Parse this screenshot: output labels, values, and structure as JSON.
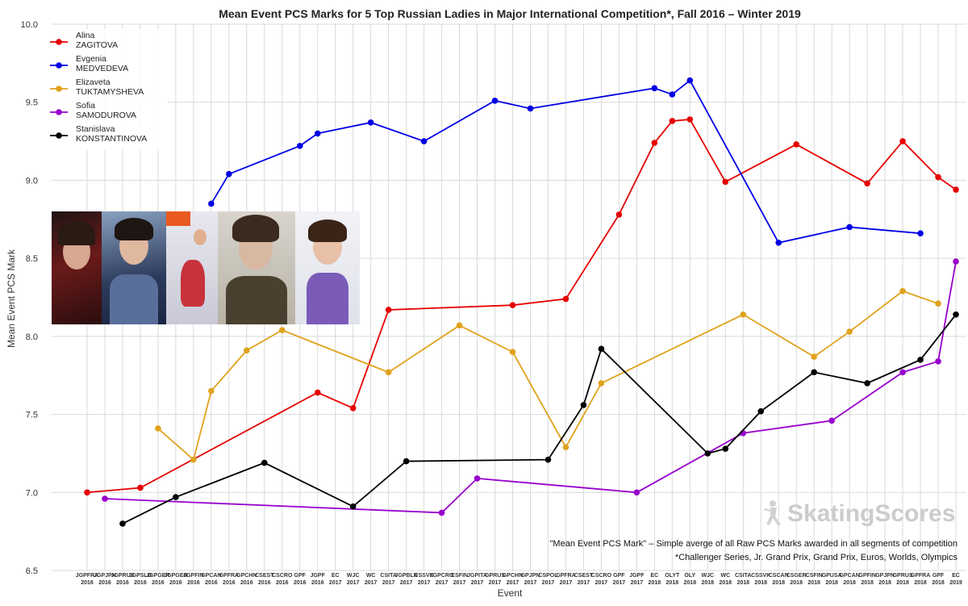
{
  "chart_data": {
    "type": "line",
    "title": "Mean Event PCS Marks for 5 Top Russian Ladies in Major International Competition*, Fall 2016 – Winter 2019",
    "xlabel": "Event",
    "ylabel": "Mean Event PCS Mark",
    "ylim": [
      6.5,
      10.0
    ],
    "yticks": [
      "6.5",
      "7.0",
      "7.5",
      "8.0",
      "8.5",
      "9.0",
      "9.5",
      "10.0"
    ],
    "grid": true,
    "legend_position": "top-left",
    "categories": [
      {
        "code": "JGPFRA",
        "year": "2016"
      },
      {
        "code": "JGPJPN",
        "year": "2016"
      },
      {
        "code": "JGPRUS",
        "year": "2016"
      },
      {
        "code": "JGPSLO",
        "year": "2016"
      },
      {
        "code": "JGPGER",
        "year": "2016"
      },
      {
        "code": "JGPGER",
        "year": "2016"
      },
      {
        "code": "JGPFIN",
        "year": "2016"
      },
      {
        "code": "GPCAN",
        "year": "2016"
      },
      {
        "code": "GPFRA",
        "year": "2016"
      },
      {
        "code": "GPCHN",
        "year": "2016"
      },
      {
        "code": "CSEST",
        "year": "2016"
      },
      {
        "code": "CSCRO",
        "year": "2016"
      },
      {
        "code": "GPF",
        "year": "2016"
      },
      {
        "code": "JGPF",
        "year": "2016"
      },
      {
        "code": "EC",
        "year": "2017"
      },
      {
        "code": "WJC",
        "year": "2017"
      },
      {
        "code": "WC",
        "year": "2017"
      },
      {
        "code": "CSITA",
        "year": "2017"
      },
      {
        "code": "JGPBLR",
        "year": "2017"
      },
      {
        "code": "CSSVK",
        "year": "2017"
      },
      {
        "code": "JGPCRO",
        "year": "2017"
      },
      {
        "code": "CSFIN",
        "year": "2017"
      },
      {
        "code": "JGPITA",
        "year": "2017"
      },
      {
        "code": "GPRUS",
        "year": "2017"
      },
      {
        "code": "GPCHN",
        "year": "2017"
      },
      {
        "code": "GPJPN",
        "year": "2017"
      },
      {
        "code": "CSPOL",
        "year": "2017"
      },
      {
        "code": "GPFRA",
        "year": "2017"
      },
      {
        "code": "CSEST",
        "year": "2017"
      },
      {
        "code": "CSCRO",
        "year": "2017"
      },
      {
        "code": "GPF",
        "year": "2017"
      },
      {
        "code": "JGPF",
        "year": "2017"
      },
      {
        "code": "EC",
        "year": "2018"
      },
      {
        "code": "OLYT",
        "year": "2018"
      },
      {
        "code": "OLY",
        "year": "2018"
      },
      {
        "code": "WJC",
        "year": "2018"
      },
      {
        "code": "WC",
        "year": "2018"
      },
      {
        "code": "CSITA",
        "year": "2018"
      },
      {
        "code": "CSSVK",
        "year": "2018"
      },
      {
        "code": "CSCAN",
        "year": "2018"
      },
      {
        "code": "CSGER",
        "year": "2018"
      },
      {
        "code": "CSFIN",
        "year": "2018"
      },
      {
        "code": "GPUSA",
        "year": "2018"
      },
      {
        "code": "GPCAN",
        "year": "2018"
      },
      {
        "code": "GPFIN",
        "year": "2018"
      },
      {
        "code": "GPJPN",
        "year": "2018"
      },
      {
        "code": "GPRUS",
        "year": "2018"
      },
      {
        "code": "GPFRA",
        "year": "2018"
      },
      {
        "code": "GPF",
        "year": "2018"
      },
      {
        "code": "EC",
        "year": "2019"
      }
    ],
    "series": [
      {
        "name": "Alina\nZAGITOVA",
        "color": "#e60000",
        "points": [
          [
            0,
            7.0
          ],
          [
            3,
            7.03
          ],
          [
            13,
            7.64
          ],
          [
            15,
            7.54
          ],
          [
            17,
            8.17
          ],
          [
            24,
            8.2
          ],
          [
            27,
            8.24
          ],
          [
            30,
            8.78
          ],
          [
            32,
            9.24
          ],
          [
            33,
            9.38
          ],
          [
            34,
            9.39
          ],
          [
            36,
            8.99
          ],
          [
            40,
            9.23
          ],
          [
            44,
            8.98
          ],
          [
            46,
            9.25
          ],
          [
            48,
            9.02
          ],
          [
            49,
            8.94
          ]
        ]
      },
      {
        "name": "Evgenia\nMEDVEDEVA",
        "color": "#0000e6",
        "points": [
          [
            7,
            8.85
          ],
          [
            8,
            9.04
          ],
          [
            12,
            9.22
          ],
          [
            13,
            9.3
          ],
          [
            16,
            9.37
          ],
          [
            19,
            9.25
          ],
          [
            23,
            9.51
          ],
          [
            25,
            9.46
          ],
          [
            32,
            9.59
          ],
          [
            33,
            9.55
          ],
          [
            34,
            9.64
          ],
          [
            39,
            8.6
          ],
          [
            43,
            8.7
          ],
          [
            47,
            8.66
          ]
        ]
      },
      {
        "name": "Elizaveta\nTUKTAMYSHEVA",
        "color": "#e0a21c",
        "points": [
          [
            4,
            7.41
          ],
          [
            6,
            7.21
          ],
          [
            7,
            7.65
          ],
          [
            9,
            7.91
          ],
          [
            11,
            8.04
          ],
          [
            17,
            7.77
          ],
          [
            21,
            8.07
          ],
          [
            24,
            7.9
          ],
          [
            27,
            7.29
          ],
          [
            29,
            7.7
          ],
          [
            37,
            8.14
          ],
          [
            41,
            7.87
          ],
          [
            43,
            8.03
          ],
          [
            46,
            8.29
          ],
          [
            48,
            8.21
          ]
        ]
      },
      {
        "name": "Sofia\nSAMODUROVA",
        "color": "#9900cc",
        "points": [
          [
            1,
            6.96
          ],
          [
            20,
            6.87
          ],
          [
            22,
            7.09
          ],
          [
            31,
            7.0
          ],
          [
            37,
            7.38
          ],
          [
            42,
            7.46
          ],
          [
            46,
            7.77
          ],
          [
            48,
            7.84
          ],
          [
            49,
            8.48
          ]
        ]
      },
      {
        "name": "Stanislava\nKONSTANTINOVA",
        "color": "#000000",
        "points": [
          [
            2,
            6.8
          ],
          [
            5,
            6.97
          ],
          [
            10,
            7.19
          ],
          [
            15,
            6.91
          ],
          [
            18,
            7.2
          ],
          [
            26,
            7.21
          ],
          [
            28,
            7.56
          ],
          [
            29,
            7.92
          ],
          [
            35,
            7.25
          ],
          [
            36,
            7.28
          ],
          [
            38,
            7.52
          ],
          [
            41,
            7.77
          ],
          [
            44,
            7.7
          ],
          [
            47,
            7.85
          ],
          [
            49,
            8.14
          ]
        ]
      }
    ],
    "annotations": [
      "\"Mean Event PCS Mark\" – Simple averge of all Raw PCS Marks awarded in all segments of competition",
      "*Challenger Series, Jr. Grand Prix, Grand Prix, Euros, Worlds, Olympics"
    ]
  },
  "watermark": {
    "text": "SkatingScores",
    "icon": "figure-skater-icon",
    "color": "#c9c9c9"
  },
  "photos": [
    {
      "icon": "skater-portrait-photo",
      "color": "#6b1a1a"
    },
    {
      "icon": "skater-portrait-photo",
      "color": "#2c3b5c"
    },
    {
      "icon": "skater-action-photo",
      "color": "#c8323a"
    },
    {
      "icon": "skater-portrait-photo",
      "color": "#4a4030"
    },
    {
      "icon": "skater-portrait-photo",
      "color": "#7a5cb8"
    }
  ]
}
